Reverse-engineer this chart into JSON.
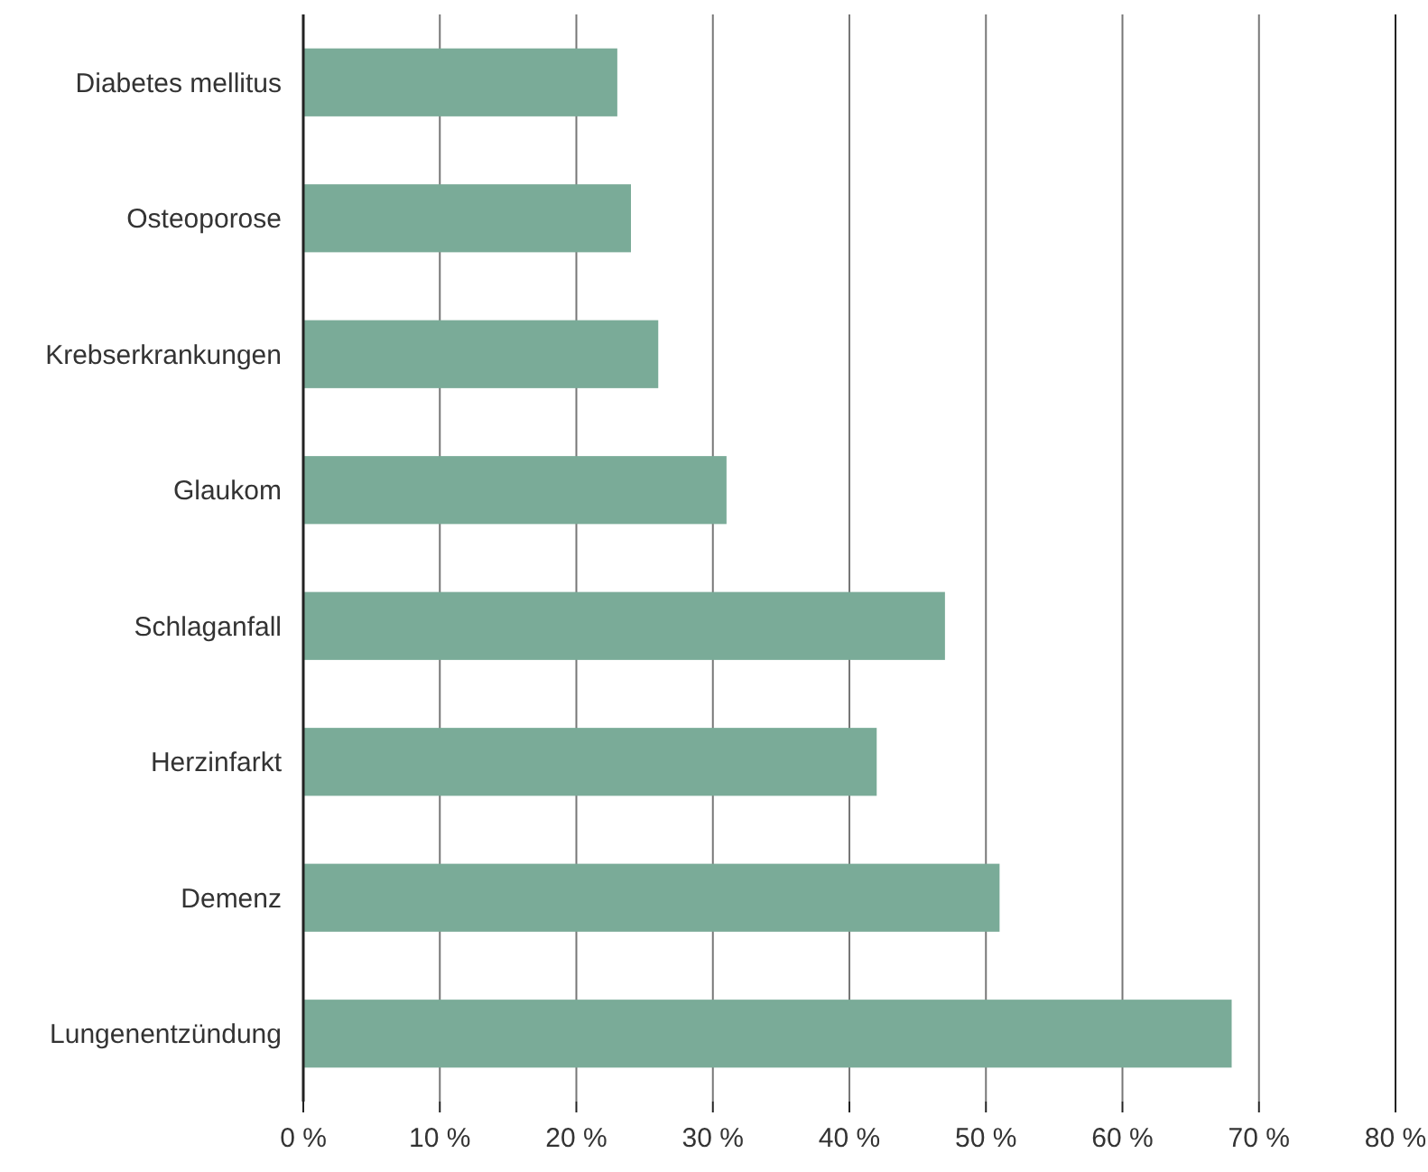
{
  "chart_data": {
    "type": "bar",
    "orientation": "horizontal",
    "categories": [
      "Diabetes mellitus",
      "Osteoporose",
      "Krebserkrankungen",
      "Glaukom",
      "Schlaganfall",
      "Herzinfarkt",
      "Demenz",
      "Lungenentzündung"
    ],
    "values": [
      23,
      24,
      26,
      31,
      47,
      42,
      51,
      68
    ],
    "color": "#7aab98",
    "xlim": [
      0,
      80
    ],
    "xticks": [
      {
        "value": 0,
        "label": "0 %"
      },
      {
        "value": 10,
        "label": "10 %"
      },
      {
        "value": 20,
        "label": "20 %"
      },
      {
        "value": 30,
        "label": "30 %"
      },
      {
        "value": 40,
        "label": "40 %"
      },
      {
        "value": 50,
        "label": "50 %"
      },
      {
        "value": 60,
        "label": "60 %"
      },
      {
        "value": 70,
        "label": "70 %"
      },
      {
        "value": 80,
        "label": "80 %"
      }
    ],
    "grid": "x"
  }
}
